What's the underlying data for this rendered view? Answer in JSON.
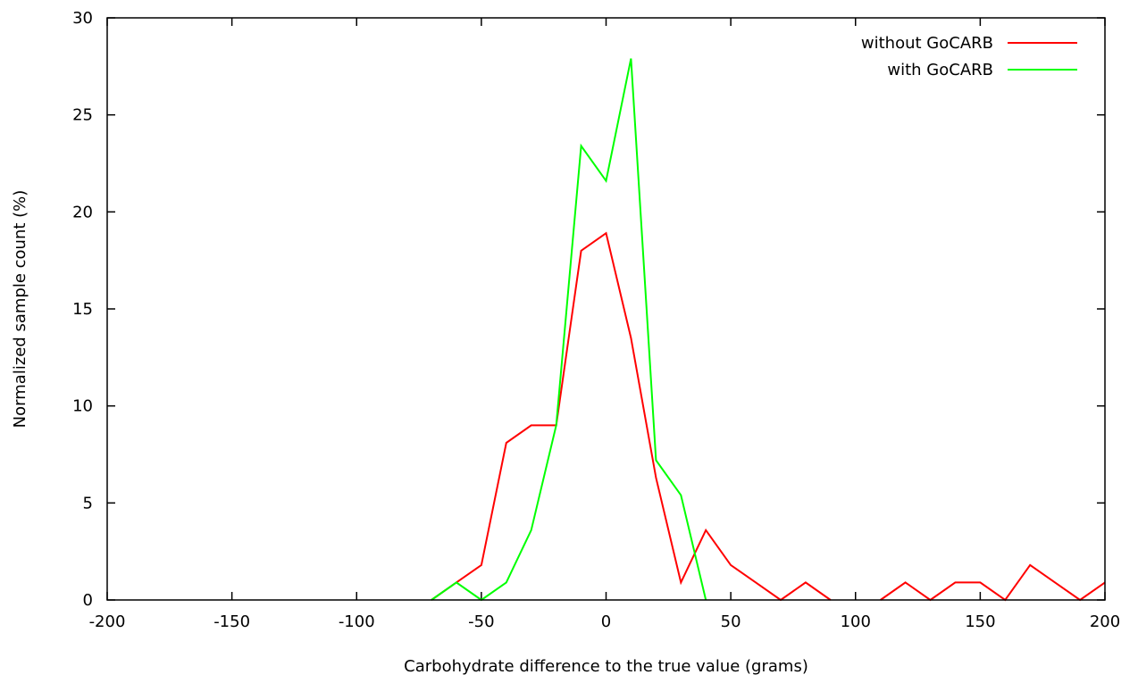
{
  "chart_data": {
    "type": "line",
    "title": "",
    "xlabel": "Carbohydrate difference to the true value (grams)",
    "ylabel": "Normalized sample count (%)",
    "xlim": [
      -200,
      200
    ],
    "ylim": [
      0,
      30
    ],
    "xticks": [
      -200,
      -150,
      -100,
      -50,
      0,
      50,
      100,
      150,
      200
    ],
    "yticks": [
      0,
      5,
      10,
      15,
      20,
      25,
      30
    ],
    "legend_position": "top-right",
    "grid": false,
    "series": [
      {
        "name": "without GoCARB",
        "color": "#ff0000",
        "points": [
          [
            -70,
            0
          ],
          [
            -60,
            0.9
          ],
          [
            -50,
            1.8
          ],
          [
            -40,
            8.1
          ],
          [
            -30,
            9.0
          ],
          [
            -20,
            9.0
          ],
          [
            -10,
            18.0
          ],
          [
            0,
            18.9
          ],
          [
            10,
            13.5
          ],
          [
            20,
            6.3
          ],
          [
            30,
            0.9
          ],
          [
            40,
            3.6
          ],
          [
            50,
            1.8
          ],
          [
            60,
            0.9
          ],
          [
            70,
            0
          ],
          [
            80,
            0.9
          ],
          [
            90,
            0
          ],
          null,
          [
            110,
            0
          ],
          [
            120,
            0.9
          ],
          [
            130,
            0
          ],
          [
            140,
            0.9
          ],
          [
            150,
            0.9
          ],
          [
            160,
            0
          ],
          [
            170,
            1.8
          ],
          [
            180,
            0.9
          ],
          [
            190,
            0
          ],
          [
            200,
            0.9
          ]
        ]
      },
      {
        "name": "with GoCARB",
        "color": "#00ff00",
        "points": [
          [
            -70,
            0
          ],
          [
            -60,
            0.9
          ],
          [
            -50,
            0
          ],
          [
            -40,
            0.9
          ],
          [
            -30,
            3.6
          ],
          [
            -20,
            9.0
          ],
          [
            -10,
            23.4
          ],
          [
            0,
            21.6
          ],
          [
            10,
            27.9
          ],
          [
            20,
            7.2
          ],
          [
            30,
            5.4
          ],
          [
            40,
            0
          ]
        ]
      }
    ]
  }
}
